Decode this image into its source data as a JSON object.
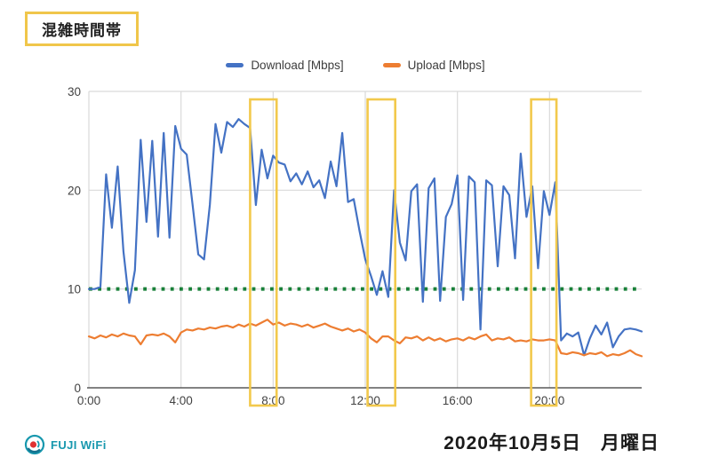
{
  "title_box": {
    "label": "混雑時間帯",
    "border_color": "#f0c64a"
  },
  "legend": {
    "items": [
      {
        "label": "Download [Mbps]",
        "color": "#4472c4"
      },
      {
        "label": "Upload [Mbps]",
        "color": "#ed7d31"
      }
    ]
  },
  "footer": {
    "logo_text": "FUJI WiFi",
    "logo_color": "#1898ae",
    "date_text": "2020年10月5日　月曜日"
  },
  "chart_data": {
    "type": "line",
    "title": "",
    "xlabel": "",
    "ylabel": "",
    "x_unit": "time_of_day_hours",
    "x_start_hour": 0,
    "x_end_hour": 24,
    "interval_minutes": 15,
    "ylim": [
      0,
      30
    ],
    "y_ticks": [
      0,
      10,
      20,
      30
    ],
    "x_tick_hours": [
      0,
      4,
      8,
      12,
      16,
      20
    ],
    "x_tick_labels": [
      "0:00",
      "4:00",
      "8:00",
      "12:00",
      "16:00",
      "20:00"
    ],
    "grid": true,
    "grid_color": "#d9d9d9",
    "axis_color": "#595959",
    "tick_text_color": "#424242",
    "legend_position": "top",
    "threshold_line": {
      "value": 10,
      "style": "dotted",
      "color": "#188038"
    },
    "highlight_color": "#f2c94c",
    "highlight_ranges": [
      {
        "from_hour": 7.0,
        "to_hour": 8.15
      },
      {
        "from_hour": 12.1,
        "to_hour": 13.3
      },
      {
        "from_hour": 19.2,
        "to_hour": 20.3
      }
    ],
    "series": [
      {
        "name": "Download [Mbps]",
        "color": "#4472c4",
        "values": [
          10,
          10,
          10.2,
          21.6,
          16.2,
          22.4,
          13.8,
          8.6,
          11.9,
          25.1,
          16.8,
          25.0,
          15.3,
          25.8,
          15.2,
          26.5,
          24.2,
          23.6,
          18.6,
          13.5,
          13.0,
          18.5,
          26.7,
          23.8,
          26.9,
          26.4,
          27.2,
          26.7,
          26.3,
          18.5,
          24.1,
          21.2,
          23.5,
          22.8,
          22.6,
          20.9,
          21.7,
          20.6,
          21.9,
          20.3,
          21.0,
          19.2,
          22.9,
          20.4,
          25.8,
          18.8,
          19.1,
          15.9,
          13.0,
          11.3,
          9.4,
          11.8,
          9.2,
          20.0,
          14.7,
          12.9,
          19.9,
          20.6,
          8.7,
          20.2,
          21.2,
          8.8,
          17.3,
          18.6,
          21.5,
          8.9,
          21.4,
          20.8,
          5.9,
          21.0,
          20.5,
          12.3,
          20.4,
          19.5,
          13.1,
          23.7,
          17.3,
          20.4,
          12.1,
          19.9,
          17.5,
          20.8,
          4.8,
          5.5,
          5.2,
          5.6,
          3.3,
          5.0,
          6.3,
          5.4,
          6.6,
          4.1,
          5.2,
          5.9,
          6.0,
          5.9,
          5.7
        ]
      },
      {
        "name": "Upload [Mbps]",
        "color": "#ed7d31",
        "values": [
          5.2,
          5.0,
          5.3,
          5.1,
          5.4,
          5.2,
          5.5,
          5.3,
          5.2,
          4.4,
          5.3,
          5.4,
          5.3,
          5.5,
          5.2,
          4.6,
          5.6,
          5.9,
          5.8,
          6.0,
          5.9,
          6.1,
          6.0,
          6.2,
          6.3,
          6.1,
          6.4,
          6.2,
          6.5,
          6.3,
          6.6,
          6.9,
          6.4,
          6.6,
          6.3,
          6.5,
          6.4,
          6.2,
          6.4,
          6.1,
          6.3,
          6.5,
          6.2,
          6.0,
          5.8,
          6.0,
          5.7,
          5.9,
          5.6,
          5.0,
          4.6,
          5.2,
          5.2,
          4.8,
          4.5,
          5.1,
          5.0,
          5.2,
          4.8,
          5.1,
          4.8,
          5.0,
          4.7,
          4.9,
          5.0,
          4.8,
          5.1,
          4.9,
          5.2,
          5.4,
          4.8,
          5.0,
          4.9,
          5.1,
          4.7,
          4.8,
          4.7,
          4.9,
          4.8,
          4.8,
          4.9,
          4.8,
          3.5,
          3.4,
          3.6,
          3.5,
          3.3,
          3.5,
          3.4,
          3.6,
          3.2,
          3.4,
          3.3,
          3.5,
          3.8,
          3.4,
          3.2
        ]
      }
    ]
  }
}
